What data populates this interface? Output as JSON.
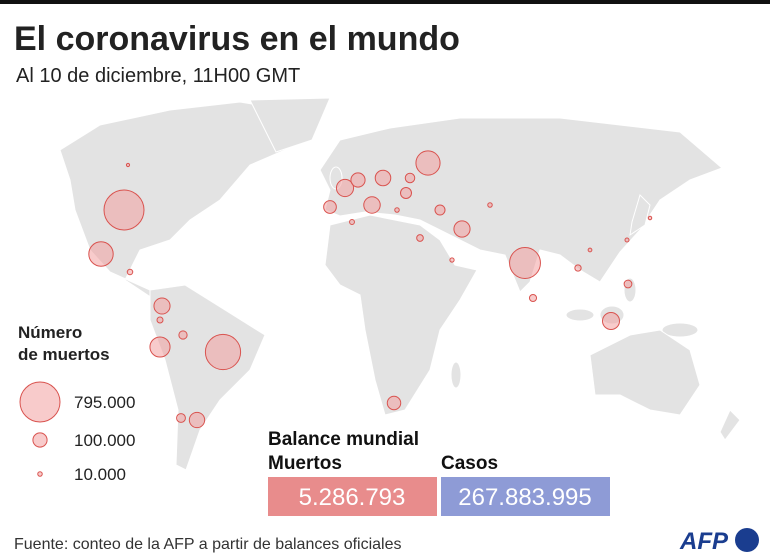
{
  "title": "El coronavirus en el mundo",
  "subtitle": "Al 10 de diciembre, 11H00 GMT",
  "legend": {
    "title_lines": [
      "Número",
      "de muertos"
    ],
    "items": [
      {
        "value": 795000,
        "label": "795.000"
      },
      {
        "value": 100000,
        "label": "100.000"
      },
      {
        "value": 10000,
        "label": "10.000"
      }
    ]
  },
  "map": {
    "bubbles": {
      "values": [
        795000,
        616000,
        475000,
        296000,
        290000,
        201000,
        129000,
        144000,
        146000,
        135000,
        130000,
        117000,
        120000,
        90000,
        80000,
        100000,
        39000,
        34000,
        60000,
        45000,
        50000,
        30000,
        25000,
        20000,
        15000,
        12000,
        10000,
        10000,
        8000,
        6000,
        5000,
        18000,
        22000,
        9000,
        7000
      ]
    }
  },
  "balance": {
    "title": "Balance mundial",
    "deaths": {
      "label": "Muertos",
      "value": 5286793,
      "value_label": "5.286.793"
    },
    "cases": {
      "label": "Casos",
      "value": 267883995,
      "value_label": "267.883.995"
    }
  },
  "source": "Fuente: conteo de la AFP a partir de balances oficiales",
  "logo": "AFP"
}
